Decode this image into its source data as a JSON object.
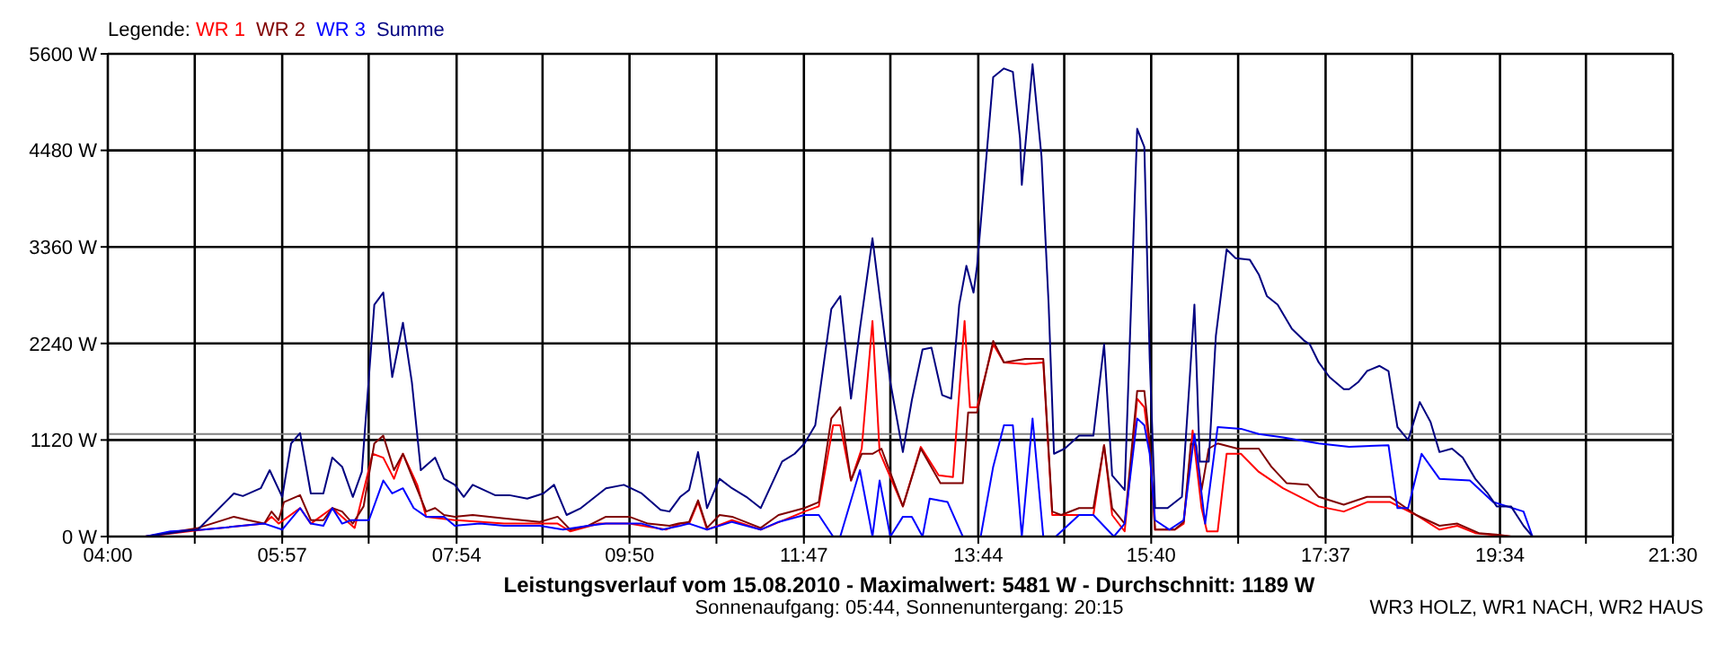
{
  "chart_data": {
    "type": "line",
    "title": "Leistungsverlauf vom 15.08.2010 - Maximalwert: 5481 W - Durchschnitt: 1189 W",
    "subtitle": "Sonnenaufgang: 05:44, Sonnenuntergang: 20:15",
    "legend_title": "Legende:",
    "annotations": [
      "WR3 HOLZ, WR1 NACH, WR2 HAUS"
    ],
    "legend": "top left",
    "grid": true,
    "line_style": "solid",
    "xlim": [
      4,
      21.5
    ],
    "xticks": [
      {
        "value": 4,
        "label": "04:00"
      },
      {
        "value": 4.9722,
        "label": null
      },
      {
        "value": 5.95,
        "label": "05:57"
      },
      {
        "value": 6.9167,
        "label": null
      },
      {
        "value": 7.9,
        "label": "07:54"
      },
      {
        "value": 8.8611,
        "label": null
      },
      {
        "value": 9.8333,
        "label": "09:50"
      },
      {
        "value": 10.8056,
        "label": null
      },
      {
        "value": 11.7833,
        "label": "11:47"
      },
      {
        "value": 12.75,
        "label": null
      },
      {
        "value": 13.7333,
        "label": "13:44"
      },
      {
        "value": 14.6944,
        "label": null
      },
      {
        "value": 15.6667,
        "label": "15:40"
      },
      {
        "value": 16.6389,
        "label": null
      },
      {
        "value": 17.6167,
        "label": "17:37"
      },
      {
        "value": 18.5833,
        "label": null
      },
      {
        "value": 19.5667,
        "label": "19:34"
      },
      {
        "value": 20.5278,
        "label": null
      },
      {
        "value": 21.5,
        "label": "21:30"
      }
    ],
    "ylim": [
      0,
      5600
    ],
    "yticks": [
      {
        "value": 0,
        "label": "0 W"
      },
      {
        "value": 1120,
        "label": "1120 W"
      },
      {
        "value": 2240,
        "label": "2240 W"
      },
      {
        "value": 3360,
        "label": "3360 W"
      },
      {
        "value": 4480,
        "label": "4480 W"
      },
      {
        "value": 5600,
        "label": "5600 W"
      }
    ],
    "ref_lines": [
      {
        "axis": "y",
        "value": 1189,
        "color": "#808080"
      }
    ],
    "series": [
      {
        "name": "WR 1",
        "color": "#ff0000",
        "x": [
          4.42,
          5.07,
          5.75,
          5.83,
          5.91,
          6.15,
          6.27,
          6.51,
          6.76,
          6.96,
          7.08,
          7.2,
          7.3,
          7.46,
          7.56,
          7.88,
          8.43,
          8.83,
          9.03,
          9.17,
          9.49,
          9.83,
          10.24,
          10.4,
          10.5,
          10.6,
          10.7,
          10.98,
          11.3,
          11.79,
          11.95,
          12.11,
          12.19,
          12.31,
          12.43,
          12.55,
          12.63,
          12.89,
          13.09,
          13.29,
          13.45,
          13.58,
          13.64,
          13.72,
          13.9,
          14.02,
          14.26,
          14.46,
          14.56,
          14.86,
          15.02,
          15.14,
          15.23,
          15.37,
          15.51,
          15.59,
          15.65,
          15.71,
          15.93,
          16.03,
          16.13,
          16.23,
          16.29,
          16.41,
          16.51,
          16.67,
          16.87,
          17.14,
          17.54,
          17.82,
          18.08,
          18.34,
          18.63,
          18.89,
          19.09,
          19.29,
          19.69
        ],
        "values": [
          0,
          80,
          150,
          230,
          150,
          330,
          150,
          330,
          100,
          960,
          915,
          670,
          960,
          600,
          230,
          190,
          150,
          150,
          150,
          60,
          150,
          150,
          80,
          150,
          150,
          400,
          80,
          190,
          80,
          290,
          350,
          1290,
          1290,
          650,
          1020,
          2500,
          980,
          350,
          1040,
          710,
          690,
          2500,
          1500,
          1500,
          2230,
          2020,
          2000,
          2020,
          250,
          250,
          250,
          1060,
          250,
          60,
          1600,
          1500,
          1020,
          80,
          80,
          150,
          1230,
          330,
          60,
          60,
          960,
          960,
          750,
          560,
          350,
          290,
          400,
          400,
          250,
          80,
          125,
          40,
          0
        ]
      },
      {
        "name": "WR 2",
        "color": "#800000",
        "x": [
          4.42,
          5.01,
          5.41,
          5.57,
          5.75,
          5.83,
          5.91,
          5.97,
          6.15,
          6.27,
          6.41,
          6.51,
          6.62,
          6.74,
          6.86,
          6.98,
          7.08,
          7.2,
          7.3,
          7.42,
          7.56,
          7.66,
          7.76,
          7.88,
          8.08,
          8.43,
          8.83,
          9.03,
          9.17,
          9.37,
          9.57,
          9.83,
          10.04,
          10.28,
          10.38,
          10.5,
          10.6,
          10.7,
          10.84,
          10.98,
          11.3,
          11.5,
          11.79,
          11.95,
          12.09,
          12.19,
          12.31,
          12.43,
          12.55,
          12.65,
          12.89,
          13.09,
          13.31,
          13.56,
          13.62,
          13.72,
          13.9,
          14.02,
          14.26,
          14.46,
          14.56,
          14.66,
          14.86,
          15.02,
          15.14,
          15.23,
          15.37,
          15.51,
          15.59,
          15.65,
          15.71,
          15.93,
          16.03,
          16.11,
          16.17,
          16.23,
          16.31,
          16.41,
          16.63,
          16.87,
          17.01,
          17.18,
          17.42,
          17.54,
          17.82,
          18.08,
          18.34,
          18.63,
          18.89,
          19.09,
          19.33,
          19.55,
          19.69
        ],
        "values": [
          0,
          100,
          230,
          190,
          150,
          290,
          190,
          400,
          480,
          190,
          190,
          330,
          290,
          150,
          350,
          1080,
          1170,
          770,
          960,
          650,
          290,
          330,
          250,
          230,
          250,
          210,
          170,
          230,
          80,
          125,
          230,
          230,
          150,
          125,
          150,
          170,
          420,
          100,
          250,
          230,
          100,
          250,
          330,
          400,
          1370,
          1500,
          650,
          960,
          960,
          1020,
          350,
          1020,
          620,
          620,
          1440,
          1440,
          2270,
          2020,
          2060,
          2060,
          290,
          250,
          330,
          330,
          1060,
          330,
          150,
          1690,
          1690,
          1080,
          80,
          80,
          170,
          1080,
          1060,
          540,
          1020,
          1080,
          1020,
          1020,
          810,
          620,
          600,
          460,
          370,
          460,
          460,
          250,
          125,
          150,
          40,
          20,
          0
        ]
      },
      {
        "name": "WR 3",
        "color": "#0000ff",
        "x": [
          4.42,
          4.7,
          5.07,
          5.75,
          5.95,
          6.15,
          6.27,
          6.41,
          6.51,
          6.62,
          6.72,
          6.92,
          7.08,
          7.18,
          7.3,
          7.42,
          7.56,
          7.76,
          7.88,
          8.16,
          8.43,
          8.83,
          9.09,
          9.37,
          9.57,
          9.97,
          10.2,
          10.4,
          10.5,
          10.7,
          10.98,
          11.3,
          11.5,
          11.79,
          11.95,
          12.11,
          12.19,
          12.41,
          12.55,
          12.63,
          12.75,
          12.89,
          12.99,
          13.11,
          13.19,
          13.39,
          13.56,
          13.76,
          13.9,
          14.02,
          14.12,
          14.22,
          14.34,
          14.46,
          14.6,
          14.86,
          15.02,
          15.25,
          15.37,
          15.51,
          15.59,
          15.65,
          15.71,
          15.87,
          16.03,
          16.15,
          16.27,
          16.41,
          16.67,
          16.87,
          17.14,
          17.54,
          17.88,
          18.32,
          18.42,
          18.54,
          18.69,
          18.89,
          19.23,
          19.49,
          19.83,
          19.93,
          20.33
        ],
        "values": [
          0,
          60,
          80,
          150,
          80,
          330,
          150,
          125,
          330,
          150,
          190,
          190,
          650,
          500,
          560,
          330,
          230,
          230,
          125,
          150,
          125,
          125,
          80,
          125,
          150,
          150,
          80,
          125,
          150,
          80,
          170,
          80,
          170,
          250,
          250,
          0,
          0,
          770,
          0,
          650,
          0,
          230,
          230,
          0,
          440,
          400,
          0,
          0,
          810,
          1290,
          1290,
          0,
          1370,
          0,
          0,
          250,
          250,
          0,
          150,
          1370,
          1290,
          960,
          190,
          80,
          190,
          1190,
          150,
          1270,
          1250,
          1190,
          1150,
          1080,
          1040,
          1060,
          330,
          330,
          960,
          670,
          650,
          400,
          290,
          0,
          0
        ]
      },
      {
        "name": "Summe",
        "color": "#000080",
        "x": [
          4.42,
          5.01,
          5.41,
          5.51,
          5.71,
          5.81,
          5.95,
          6.05,
          6.15,
          6.27,
          6.41,
          6.51,
          6.62,
          6.74,
          6.84,
          6.9,
          6.98,
          7.08,
          7.18,
          7.3,
          7.4,
          7.5,
          7.66,
          7.76,
          7.88,
          7.98,
          8.08,
          8.33,
          8.49,
          8.69,
          8.87,
          8.99,
          9.13,
          9.29,
          9.57,
          9.77,
          9.97,
          10.18,
          10.28,
          10.4,
          10.5,
          10.6,
          10.7,
          10.84,
          10.98,
          11.14,
          11.3,
          11.54,
          11.68,
          11.79,
          11.91,
          12.09,
          12.19,
          12.31,
          12.41,
          12.55,
          12.75,
          12.89,
          12.99,
          13.11,
          13.21,
          13.33,
          13.43,
          13.52,
          13.6,
          13.68,
          13.72,
          13.9,
          14.02,
          14.12,
          14.2,
          14.22,
          14.34,
          14.44,
          14.52,
          14.58,
          14.7,
          14.86,
          15.02,
          15.14,
          15.23,
          15.37,
          15.43,
          15.51,
          15.59,
          15.65,
          15.71,
          15.85,
          16.01,
          16.09,
          16.15,
          16.21,
          16.31,
          16.39,
          16.51,
          16.61,
          16.77,
          16.87,
          16.96,
          17.08,
          17.24,
          17.38,
          17.44,
          17.54,
          17.66,
          17.82,
          17.88,
          17.98,
          18.08,
          18.22,
          18.32,
          18.42,
          18.54,
          18.67,
          18.79,
          18.89,
          19.03,
          19.15,
          19.29,
          19.43,
          19.53,
          19.69,
          19.83,
          19.93,
          20.33
        ],
        "values": [
          0,
          83,
          500,
          470,
          560,
          770,
          460,
          1080,
          1200,
          500,
          500,
          915,
          810,
          460,
          750,
          1580,
          2690,
          2830,
          1850,
          2480,
          1790,
          770,
          915,
          670,
          600,
          460,
          600,
          480,
          480,
          440,
          500,
          600,
          250,
          330,
          560,
          600,
          500,
          310,
          290,
          460,
          540,
          980,
          330,
          670,
          560,
          460,
          330,
          870,
          960,
          1080,
          1290,
          2640,
          2790,
          1600,
          2410,
          3460,
          1790,
          980,
          1580,
          2170,
          2190,
          1640,
          1600,
          2690,
          3140,
          2830,
          3140,
          5330,
          5430,
          5390,
          4620,
          4080,
          5480,
          4410,
          2690,
          960,
          1020,
          1170,
          1170,
          2230,
          710,
          540,
          2330,
          4730,
          4520,
          2060,
          330,
          330,
          460,
          1710,
          2690,
          870,
          870,
          2330,
          3330,
          3230,
          3210,
          3040,
          2790,
          2690,
          2410,
          2270,
          2230,
          2020,
          1850,
          1710,
          1710,
          1790,
          1920,
          1980,
          1920,
          1270,
          1120,
          1560,
          1330,
          980,
          1020,
          915,
          670,
          500,
          350,
          350,
          125,
          0,
          0
        ]
      }
    ]
  }
}
